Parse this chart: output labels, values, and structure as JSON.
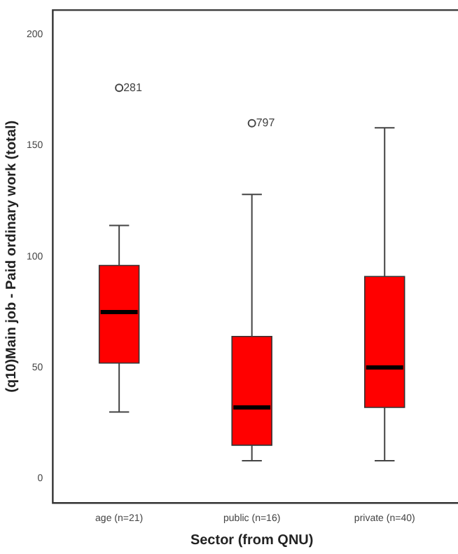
{
  "chart_data": {
    "type": "box",
    "xlabel": "Sector (from QNU)",
    "ylabel": "(q10)Main job - Paid ordinary work (total)",
    "categories": [
      "age (n=21)",
      "public (n=16)",
      "private (n=40)"
    ],
    "color": "#ff0000",
    "boxes": [
      {
        "low": 30,
        "q1": 52,
        "median": 75,
        "q3": 96,
        "high": 114,
        "outliers": [
          176
        ]
      },
      {
        "low": 8,
        "q1": 15,
        "median": 32,
        "q3": 64,
        "high": 128,
        "outliers": [
          160
        ]
      },
      {
        "low": 8,
        "q1": 32,
        "median": 50,
        "q3": 91,
        "high": 158
      }
    ],
    "ylim": [
      -11,
      211
    ],
    "yticks": [
      0,
      50,
      100,
      150,
      200
    ],
    "grid": false,
    "legend": false,
    "annotations": [
      "281",
      "797"
    ]
  }
}
